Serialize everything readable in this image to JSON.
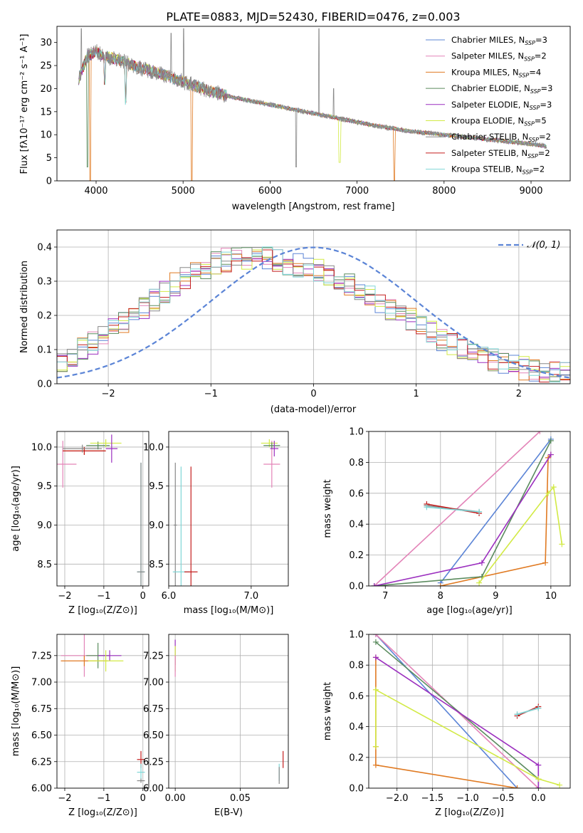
{
  "colors": {
    "Chabrier MILES": "#5b84d6",
    "Salpeter MILES": "#e384b8",
    "Kroupa MILES": "#e07a22",
    "Chabrier ELODIE": "#5a8b5e",
    "Salpeter ELODIE": "#9b2fbf",
    "Kroupa ELODIE": "#d2ea45",
    "Chabrier STELIB": "#888888",
    "Salpeter STELIB": "#c41d1d",
    "Kroupa STELIB": "#7fd6d6"
  },
  "spectrum_panel": {
    "title": "PLATE=0883, MJD=52430, FIBERID=0476, z=0.003",
    "xlabel": "wavelength [Angstrom, rest frame]",
    "ylabel": "Flux [fλ10⁻¹⁷ erg cm⁻² s⁻¹ A⁻¹]",
    "xticks": [
      "4000",
      "5000",
      "6000",
      "7000",
      "8000",
      "9000"
    ],
    "yticks": [
      "0",
      "5",
      "10",
      "15",
      "20",
      "25",
      "30"
    ],
    "legend": [
      {
        "name": "Chabrier MILES",
        "label": "Chabrier MILES, N",
        "sub": "SSP",
        "n": "=3"
      },
      {
        "name": "Salpeter MILES",
        "label": "Salpeter MILES, N",
        "sub": "SSP",
        "n": "=2"
      },
      {
        "name": "Kroupa MILES",
        "label": "Kroupa MILES, N",
        "sub": "SSP",
        "n": "=4"
      },
      {
        "name": "Chabrier ELODIE",
        "label": "Chabrier ELODIE, N",
        "sub": "SSP",
        "n": "=3"
      },
      {
        "name": "Salpeter ELODIE",
        "label": "Salpeter ELODIE, N",
        "sub": "SSP",
        "n": "=3"
      },
      {
        "name": "Kroupa ELODIE",
        "label": "Kroupa ELODIE, N",
        "sub": "SSP",
        "n": "=5"
      },
      {
        "name": "Chabrier STELIB",
        "label": "Chabrier STELIB, N",
        "sub": "SSP",
        "n": "=2"
      },
      {
        "name": "Salpeter STELIB",
        "label": "Salpeter STELIB, N",
        "sub": "SSP",
        "n": "=2"
      },
      {
        "name": "Kroupa STELIB",
        "label": "Kroupa STELIB, N",
        "sub": "SSP",
        "n": "=2"
      }
    ]
  },
  "residual_panel": {
    "xlabel": "(data-model)/error",
    "ylabel": "Normed distribution",
    "xticks": [
      "−2",
      "−1",
      "0",
      "1",
      "2"
    ],
    "yticks": [
      "0.0",
      "0.1",
      "0.2",
      "0.3",
      "0.4"
    ],
    "legend_label": "𝒩(0, 1)"
  },
  "small_panels": {
    "p3": {
      "xlabel": "Z [log₁₀(Z/Z⊙)]",
      "ylabel": "age  [log₁₀(age/yr)]",
      "xticks": [
        "−2",
        "−1",
        "0"
      ],
      "yticks": [
        "8.5",
        "9.0",
        "9.5",
        "10.0"
      ]
    },
    "p4": {
      "xlabel": "mass [log₁₀(M/M⊙)]",
      "xticks": [
        "6.0",
        "7.0"
      ],
      "yticks": [
        "8.5",
        "9.0",
        "9.5",
        "10.0"
      ]
    },
    "p5": {
      "xlabel": "age  [log₁₀(age/yr)]",
      "ylabel": "mass weight",
      "xticks": [
        "7",
        "8",
        "9",
        "10"
      ],
      "yticks": [
        "0.0",
        "0.2",
        "0.4",
        "0.6",
        "0.8",
        "1.0"
      ]
    },
    "p6": {
      "xlabel": "Z [log₁₀(Z/Z⊙)]",
      "ylabel": "mass [log₁₀(M/M⊙)]",
      "xticks": [
        "−2",
        "−1",
        "0"
      ],
      "yticks": [
        "6.00",
        "6.25",
        "6.50",
        "6.75",
        "7.00",
        "7.25"
      ]
    },
    "p7": {
      "xlabel": "E(B-V)",
      "xticks": [
        "0.00",
        "0.05"
      ],
      "yticks": [
        "6.00",
        "6.25",
        "6.50",
        "6.75",
        "7.00",
        "7.25"
      ]
    },
    "p8": {
      "xlabel": "Z [log₁₀(Z/Z⊙)]",
      "ylabel": "mass weight",
      "xticks": [
        "−2.0",
        "−1.5",
        "−1.0",
        "−0.5",
        "0.0"
      ],
      "yticks": [
        "0.0",
        "0.2",
        "0.4",
        "0.6",
        "0.8",
        "1.0"
      ]
    }
  },
  "chart_data": [
    {
      "type": "line",
      "title": "PLATE=0883, MJD=52430, FIBERID=0476, z=0.003",
      "xlabel": "wavelength [Angstrom, rest frame]",
      "ylabel": "Flux [fλ10⁻¹⁷ erg cm⁻² s⁻¹ A⁻¹]",
      "xlim": [
        3550,
        9450
      ],
      "ylim": [
        0,
        33.5
      ],
      "continuum": {
        "x": [
          3800,
          3900,
          4000,
          4100,
          4300,
          4500,
          4700,
          5000,
          5300,
          5600,
          6000,
          6400,
          6800,
          7200,
          7600,
          8000,
          8500,
          9000,
          9180
        ],
        "y": [
          22,
          27,
          28,
          27,
          26,
          24.5,
          23.5,
          21.5,
          19.5,
          18,
          16.5,
          15,
          13.5,
          12,
          10.8,
          10,
          9,
          8,
          7.5
        ]
      },
      "legend_placement": "upper right",
      "grid": false
    },
    {
      "type": "line",
      "xlabel": "(data-model)/error",
      "ylabel": "Normed distribution",
      "xlim": [
        -2.5,
        2.5
      ],
      "ylim": [
        0,
        0.45
      ],
      "series": [
        {
          "name": "𝒩(0, 1)",
          "mean": 0,
          "sigma": 1
        }
      ],
      "histogram_envelope": {
        "x": [
          -2.5,
          -2.25,
          -2,
          -1.75,
          -1.5,
          -1.25,
          -1,
          -0.75,
          -0.5,
          -0.25,
          0,
          0.25,
          0.5,
          0.75,
          1,
          1.25,
          1.5,
          1.75,
          2,
          2.25,
          2.5
        ],
        "y": [
          0.06,
          0.1,
          0.15,
          0.2,
          0.26,
          0.31,
          0.35,
          0.37,
          0.37,
          0.35,
          0.34,
          0.31,
          0.26,
          0.22,
          0.18,
          0.13,
          0.1,
          0.07,
          0.05,
          0.03,
          0.03
        ]
      },
      "grid": true
    },
    {
      "type": "scatter",
      "xlabel": "Z [log₁₀(Z/Z⊙)]",
      "ylabel": "age  [log₁₀(age/yr)]",
      "xlim": [
        -2.2,
        0.15
      ],
      "ylim": [
        8.22,
        10.2
      ],
      "grid": true,
      "points": [
        {
          "series": "Salpeter MILES",
          "x": -2.05,
          "y": 9.78,
          "xerr": 0.35,
          "yerr": 0.3
        },
        {
          "series": "Kroupa MILES",
          "x": -1.5,
          "y": 9.95,
          "xerr": 0.55,
          "yerr": 0.05
        },
        {
          "series": "Salpeter STELIB",
          "x": -1.5,
          "y": 9.95,
          "xerr": 0.55,
          "yerr": 0.05
        },
        {
          "series": "Chabrier STELIB",
          "x": -1.55,
          "y": 9.98,
          "xerr": 0.5,
          "yerr": 0.05
        },
        {
          "series": "Chabrier ELODIE",
          "x": -1.15,
          "y": 10.02,
          "xerr": 0.3,
          "yerr": 0.05
        },
        {
          "series": "Kroupa ELODIE",
          "x": -0.95,
          "y": 10.05,
          "xerr": 0.4,
          "yerr": 0.05
        },
        {
          "series": "Salpeter ELODIE",
          "x": -0.8,
          "y": 9.98,
          "xerr": 0.15,
          "yerr": 0.18
        },
        {
          "series": "Kroupa STELIB",
          "x": -0.05,
          "y": 8.4,
          "xerr": 0.1,
          "yerr": 1.4
        },
        {
          "series": "Chabrier STELIB",
          "x": -0.05,
          "y": 8.4,
          "xerr": 0.1,
          "yerr": 1.4
        }
      ]
    },
    {
      "type": "scatter",
      "xlabel": "mass [log₁₀(M/M⊙)]",
      "xlim": [
        6.0,
        7.45
      ],
      "ylim": [
        8.22,
        10.2
      ],
      "grid": true,
      "points": [
        {
          "series": "Chabrier STELIB",
          "x": 6.08,
          "y": 9.0,
          "xerr": 0.02,
          "yerr": 0.8
        },
        {
          "series": "Kroupa STELIB",
          "x": 6.15,
          "y": 8.4,
          "xerr": 0.1,
          "yerr": 1.35
        },
        {
          "series": "Salpeter STELIB",
          "x": 6.27,
          "y": 8.4,
          "xerr": 0.08,
          "yerr": 1.35
        },
        {
          "series": "Salpeter MILES",
          "x": 7.25,
          "y": 9.78,
          "xerr": 0.1,
          "yerr": 0.3
        },
        {
          "series": "Kroupa ELODIE",
          "x": 7.22,
          "y": 10.05,
          "xerr": 0.1,
          "yerr": 0.05
        },
        {
          "series": "Chabrier ELODIE",
          "x": 7.25,
          "y": 10.02,
          "xerr": 0.1,
          "yerr": 0.04
        },
        {
          "series": "Salpeter ELODIE",
          "x": 7.28,
          "y": 9.98,
          "xerr": 0.05,
          "yerr": 0.1
        }
      ]
    },
    {
      "type": "line",
      "xlabel": "age  [log₁₀(age/yr)]",
      "ylabel": "mass weight",
      "xlim": [
        6.7,
        10.35
      ],
      "ylim": [
        0,
        1
      ],
      "grid": true,
      "series": [
        {
          "name": "Chabrier MILES",
          "x": [
            8.0,
            10.0
          ],
          "y": [
            0.02,
            0.95
          ]
        },
        {
          "name": "Salpeter MILES",
          "x": [
            6.8,
            9.8
          ],
          "y": [
            0.0,
            1.0
          ]
        },
        {
          "name": "Kroupa MILES",
          "x": [
            8.0,
            9.9,
            9.95,
            10.0
          ],
          "y": [
            0.0,
            0.15,
            0.83,
            0.85
          ]
        },
        {
          "name": "Chabrier ELODIE",
          "x": [
            6.8,
            8.75,
            10.0
          ],
          "y": [
            0.0,
            0.06,
            0.94
          ]
        },
        {
          "name": "Salpeter ELODIE",
          "x": [
            6.8,
            8.75,
            10.0
          ],
          "y": [
            0.0,
            0.15,
            0.85
          ]
        },
        {
          "name": "Kroupa ELODIE",
          "x": [
            8.7,
            9.95,
            10.05,
            10.2
          ],
          "y": [
            0.02,
            0.6,
            0.64,
            0.27
          ]
        },
        {
          "name": "Chabrier STELIB",
          "x": [
            7.75,
            8.7
          ],
          "y": [
            0.52,
            0.48
          ]
        },
        {
          "name": "Salpeter STELIB",
          "x": [
            7.75,
            8.7
          ],
          "y": [
            0.53,
            0.47
          ]
        },
        {
          "name": "Kroupa STELIB",
          "x": [
            7.75,
            8.7
          ],
          "y": [
            0.51,
            0.48
          ]
        }
      ]
    },
    {
      "type": "scatter",
      "xlabel": "Z [log₁₀(Z/Z⊙)]",
      "ylabel": "mass [log₁₀(M/M⊙)]",
      "xlim": [
        -2.2,
        0.15
      ],
      "ylim": [
        6.0,
        7.45
      ],
      "grid": true,
      "points": [
        {
          "series": "Salpeter MILES",
          "x": -1.5,
          "y": 7.25,
          "xerr": 0.6,
          "yerr": 0.2
        },
        {
          "series": "Kroupa MILES",
          "x": -1.5,
          "y": 7.2,
          "xerr": 0.6,
          "yerr": 0.05
        },
        {
          "series": "Chabrier ELODIE",
          "x": -1.15,
          "y": 7.25,
          "xerr": 0.3,
          "yerr": 0.12
        },
        {
          "series": "Salpeter ELODIE",
          "x": -0.85,
          "y": 7.25,
          "xerr": 0.3,
          "yerr": 0.05
        },
        {
          "series": "Kroupa ELODIE",
          "x": -0.95,
          "y": 7.2,
          "xerr": 0.45,
          "yerr": 0.1
        },
        {
          "series": "Salpeter STELIB",
          "x": -0.05,
          "y": 6.27,
          "xerr": 0.1,
          "yerr": 0.08
        },
        {
          "series": "Kroupa STELIB",
          "x": -0.05,
          "y": 6.15,
          "xerr": 0.1,
          "yerr": 0.08
        },
        {
          "series": "Chabrier STELIB",
          "x": -0.05,
          "y": 6.07,
          "xerr": 0.1,
          "yerr": 0.02
        }
      ]
    },
    {
      "type": "scatter",
      "xlabel": "E(B-V)",
      "xlim": [
        -0.005,
        0.087
      ],
      "ylim": [
        6.0,
        7.45
      ],
      "grid": true,
      "points": [
        {
          "series": "Salpeter ELODIE",
          "x": 0.0,
          "y": 7.28,
          "xerr": 0,
          "yerr": 0.12
        },
        {
          "series": "Kroupa ELODIE",
          "x": 0.0,
          "y": 7.22,
          "xerr": 0,
          "yerr": 0.12
        },
        {
          "series": "Salpeter MILES",
          "x": 0.0,
          "y": 7.15,
          "xerr": 0,
          "yerr": 0.1
        },
        {
          "series": "Salpeter STELIB",
          "x": 0.083,
          "y": 6.27,
          "xerr": 0,
          "yerr": 0.08
        },
        {
          "series": "Kroupa STELIB",
          "x": 0.08,
          "y": 6.15,
          "xerr": 0,
          "yerr": 0.08
        },
        {
          "series": "Chabrier STELIB",
          "x": 0.08,
          "y": 6.12,
          "xerr": 0,
          "yerr": 0.08
        }
      ]
    },
    {
      "type": "line",
      "xlabel": "Z [log₁₀(Z/Z⊙)]",
      "ylabel": "mass weight",
      "xlim": [
        -2.4,
        0.45
      ],
      "ylim": [
        0,
        1
      ],
      "grid": true,
      "series": [
        {
          "name": "Chabrier MILES",
          "x": [
            -2.3,
            -0.3
          ],
          "y": [
            1.0,
            0.0
          ]
        },
        {
          "name": "Salpeter MILES",
          "x": [
            -2.3,
            0.0
          ],
          "y": [
            1.0,
            0.0
          ]
        },
        {
          "name": "Kroupa MILES",
          "x": [
            -2.3,
            -2.3,
            -2.3,
            -0.3
          ],
          "y": [
            0.85,
            0.27,
            0.15,
            0.0
          ]
        },
        {
          "name": "Chabrier ELODIE",
          "x": [
            -2.3,
            0.0,
            0.0
          ],
          "y": [
            0.95,
            0.06,
            0.0
          ]
        },
        {
          "name": "Salpeter ELODIE",
          "x": [
            -2.3,
            0.0,
            0.0
          ],
          "y": [
            0.85,
            0.15,
            0.0
          ]
        },
        {
          "name": "Kroupa ELODIE",
          "x": [
            -2.3,
            -2.3,
            0.0,
            0.3
          ],
          "y": [
            0.27,
            0.64,
            0.06,
            0.02
          ]
        },
        {
          "name": "Chabrier STELIB",
          "x": [
            -0.3,
            0.0
          ],
          "y": [
            0.48,
            0.52
          ]
        },
        {
          "name": "Salpeter STELIB",
          "x": [
            -0.3,
            0.0
          ],
          "y": [
            0.47,
            0.53
          ]
        },
        {
          "name": "Kroupa STELIB",
          "x": [
            -0.3,
            0.0
          ],
          "y": [
            0.48,
            0.52
          ]
        }
      ]
    }
  ]
}
